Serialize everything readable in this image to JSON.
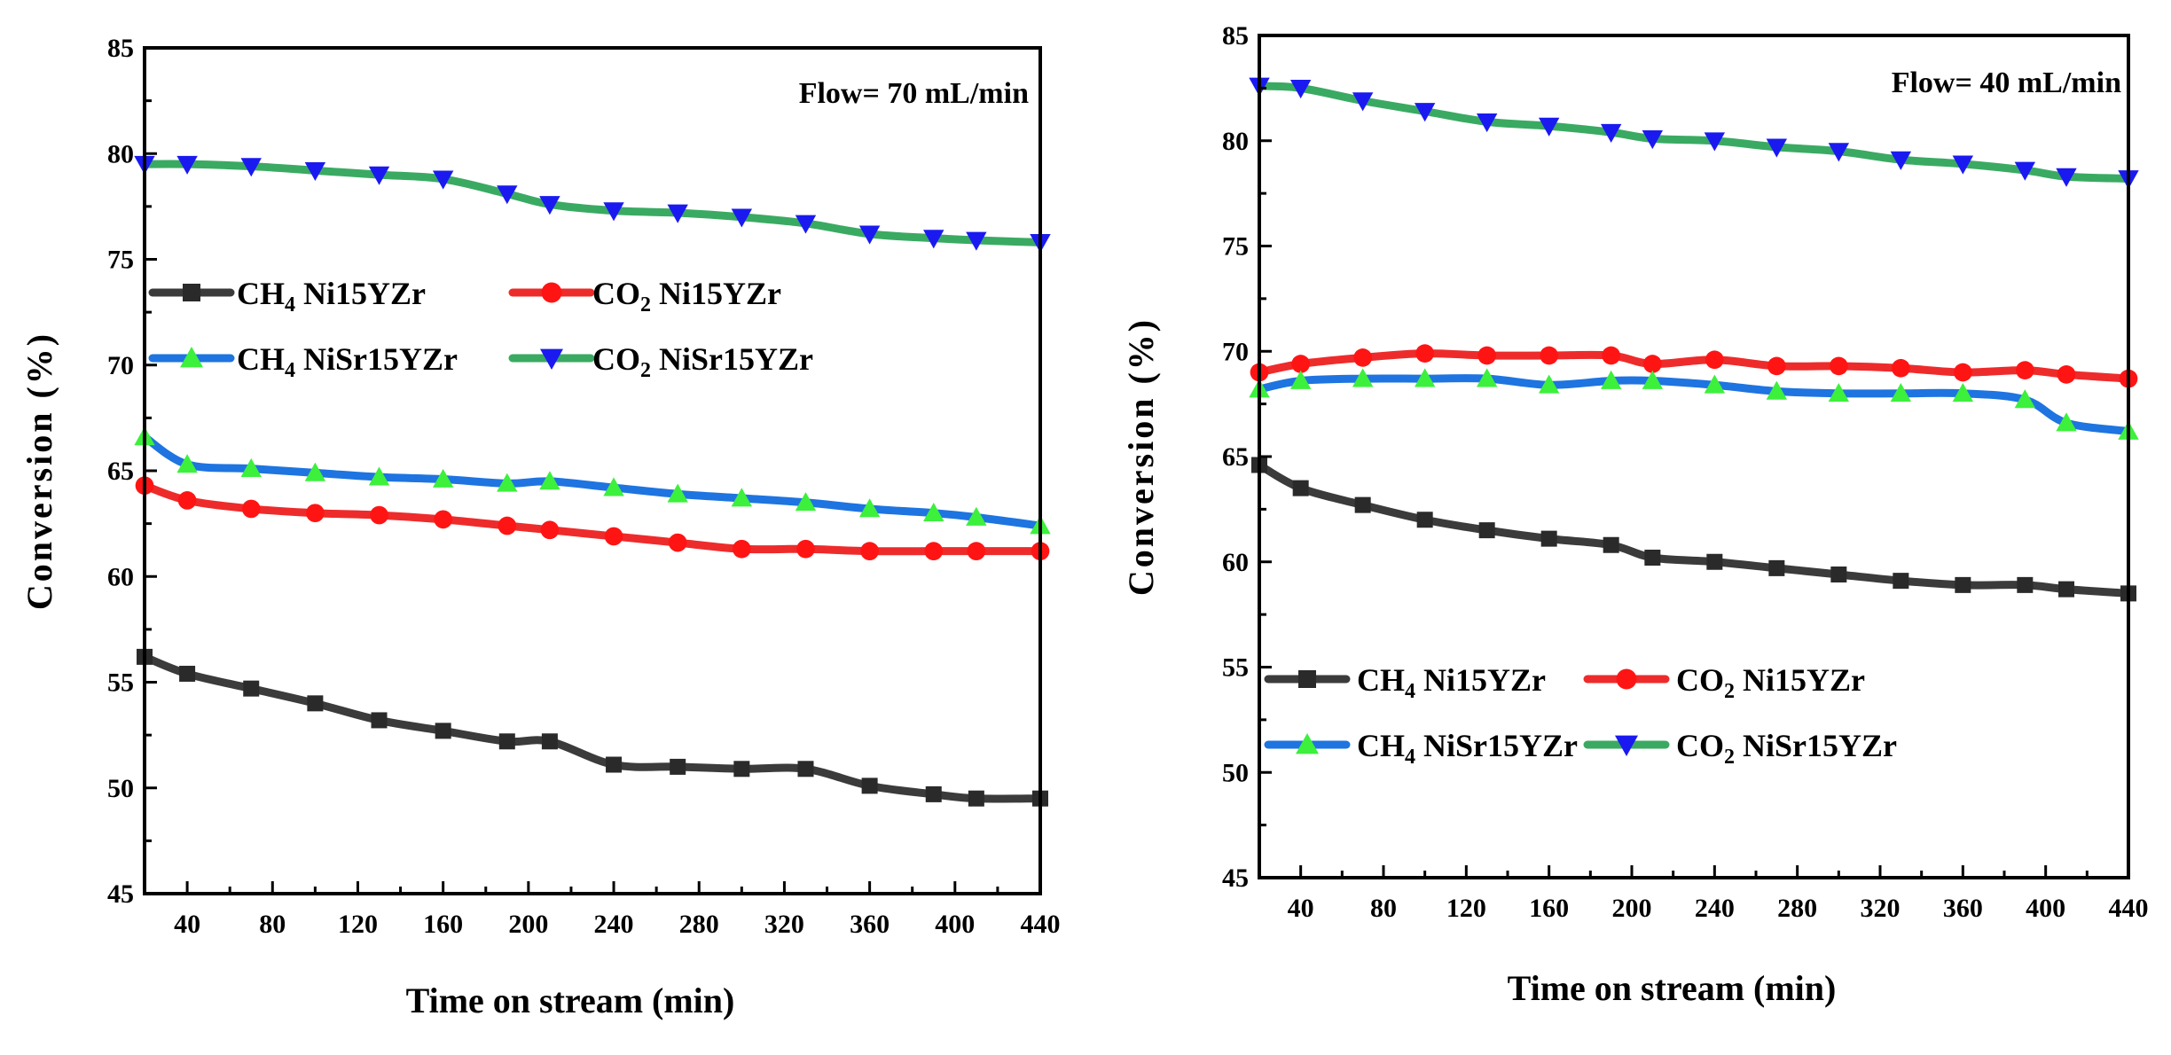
{
  "colors": {
    "ch4_ni": "#3b3b3b",
    "co2_ni": "#ee2b2b",
    "ch4_nisr": "#1e74e0",
    "co2_nisr": "#3aaa62",
    "green_marker": "#3cf03c",
    "blue_marker": "#1a1af0",
    "red_marker": "#ff1414",
    "black_marker": "#2a2a2a"
  },
  "chart_data": [
    {
      "type": "line",
      "annotation": "Flow= 70 mL/min",
      "xlabel": "Time on stream (min)",
      "ylabel": "Conversion (%)",
      "xlim": [
        20,
        440
      ],
      "ylim": [
        45,
        85
      ],
      "xticks": [
        40,
        80,
        120,
        160,
        200,
        240,
        280,
        320,
        360,
        400,
        440
      ],
      "yticks": [
        45,
        50,
        55,
        60,
        65,
        70,
        75,
        80,
        85
      ],
      "x": [
        20,
        40,
        70,
        100,
        130,
        160,
        190,
        210,
        240,
        270,
        300,
        330,
        360,
        390,
        410,
        440
      ],
      "series": [
        {
          "key": "ch4_ni",
          "label_main": "CH",
          "label_sub": "4",
          "label_rest": " Ni15YZr",
          "marker": "square",
          "values": [
            56.2,
            55.4,
            54.7,
            54.0,
            53.2,
            52.7,
            52.2,
            52.2,
            51.1,
            51.0,
            50.9,
            50.9,
            50.1,
            49.7,
            49.5,
            49.5
          ]
        },
        {
          "key": "co2_ni",
          "label_main": "CO",
          "label_sub": "2",
          "label_rest": " Ni15YZr",
          "marker": "circle",
          "values": [
            64.3,
            63.6,
            63.2,
            63.0,
            62.9,
            62.7,
            62.4,
            62.2,
            61.9,
            61.6,
            61.3,
            61.3,
            61.2,
            61.2,
            61.2,
            61.2
          ]
        },
        {
          "key": "ch4_nisr",
          "label_main": "CH",
          "label_sub": "4",
          "label_rest": " NiSr15YZr",
          "marker": "triangle-up",
          "values": [
            66.6,
            65.3,
            65.1,
            64.9,
            64.7,
            64.6,
            64.4,
            64.5,
            64.2,
            63.9,
            63.7,
            63.5,
            63.2,
            63.0,
            62.8,
            62.4
          ]
        },
        {
          "key": "co2_nisr",
          "label_main": "CO",
          "label_sub": "2",
          "label_rest": " NiSr15YZr",
          "marker": "triangle-down",
          "values": [
            79.5,
            79.5,
            79.4,
            79.2,
            79.0,
            78.8,
            78.1,
            77.6,
            77.3,
            77.2,
            77.0,
            76.7,
            76.2,
            76.0,
            75.9,
            75.8
          ]
        }
      ]
    },
    {
      "type": "line",
      "annotation": "Flow= 40 mL/min",
      "xlabel": "Time on stream (min)",
      "ylabel": "Conversion (%)",
      "xlim": [
        20,
        440
      ],
      "ylim": [
        45,
        85
      ],
      "xticks": [
        40,
        80,
        120,
        160,
        200,
        240,
        280,
        320,
        360,
        400,
        440
      ],
      "yticks": [
        45,
        50,
        55,
        60,
        65,
        70,
        75,
        80,
        85
      ],
      "x": [
        20,
        40,
        70,
        100,
        130,
        160,
        190,
        210,
        240,
        270,
        300,
        330,
        360,
        390,
        410,
        440
      ],
      "series": [
        {
          "key": "ch4_ni",
          "label_main": "CH",
          "label_sub": "4",
          "label_rest": "  Ni15YZr",
          "marker": "square",
          "values": [
            64.6,
            63.5,
            62.7,
            62.0,
            61.5,
            61.1,
            60.8,
            60.2,
            60.0,
            59.7,
            59.4,
            59.1,
            58.9,
            58.9,
            58.7,
            58.5
          ]
        },
        {
          "key": "co2_ni",
          "label_main": "CO",
          "label_sub": "2",
          "label_rest": "  Ni15YZr",
          "marker": "circle",
          "values": [
            69.0,
            69.4,
            69.7,
            69.9,
            69.8,
            69.8,
            69.8,
            69.4,
            69.6,
            69.3,
            69.3,
            69.2,
            69.0,
            69.1,
            68.9,
            68.7
          ]
        },
        {
          "key": "ch4_nisr",
          "label_main": "CH",
          "label_sub": "4",
          "label_rest": "  NiSr15YZr",
          "marker": "triangle-up",
          "values": [
            68.2,
            68.6,
            68.7,
            68.7,
            68.7,
            68.4,
            68.6,
            68.6,
            68.4,
            68.1,
            68.0,
            68.0,
            68.0,
            67.7,
            66.6,
            66.2
          ]
        },
        {
          "key": "co2_nisr",
          "label_main": "CO",
          "label_sub": "2",
          "label_rest": "  NiSr15YZr",
          "marker": "triangle-down",
          "values": [
            82.6,
            82.5,
            81.9,
            81.4,
            80.9,
            80.7,
            80.4,
            80.1,
            80.0,
            79.7,
            79.5,
            79.1,
            78.9,
            78.6,
            78.3,
            78.2
          ]
        }
      ]
    }
  ]
}
